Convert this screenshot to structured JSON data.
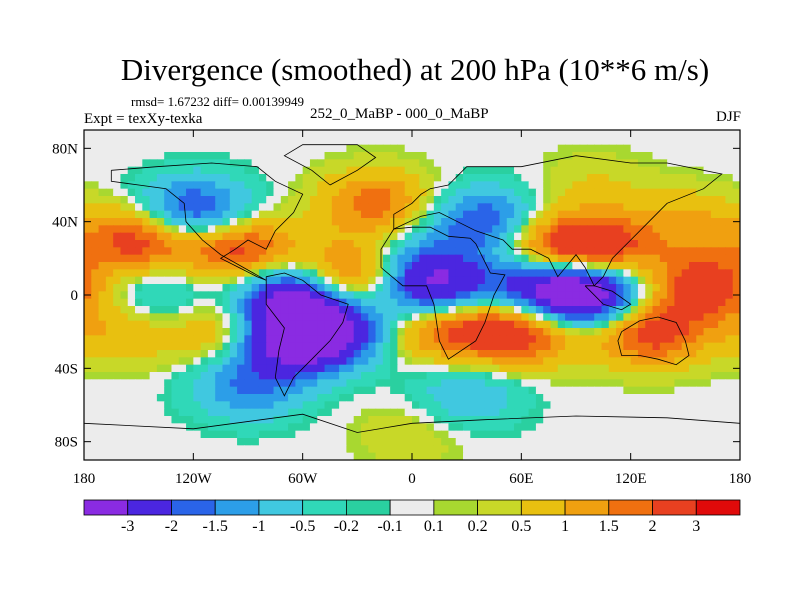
{
  "title": "Divergence (smoothed) at 200 hPa (10**6 m/s)",
  "stats_text": "rmsd= 1.67232 diff= 0.00139949",
  "expt_text": "Expt = texXy-texka",
  "difference_label": "252_0_MaBP - 000_0_MaBP",
  "season": "DJF",
  "chart_data": {
    "type": "heatmap",
    "title": "Divergence (smoothed) at 200 hPa (10**6 m/s)",
    "units": "10**6 m/s",
    "x_range": [
      -180,
      180
    ],
    "y_range": [
      -90,
      90
    ],
    "x_ticks": [
      {
        "value": -180,
        "label": "180"
      },
      {
        "value": -120,
        "label": "120W"
      },
      {
        "value": -60,
        "label": "60W"
      },
      {
        "value": 0,
        "label": "0"
      },
      {
        "value": 60,
        "label": "60E"
      },
      {
        "value": 120,
        "label": "120E"
      },
      {
        "value": 180,
        "label": "180"
      }
    ],
    "y_ticks": [
      {
        "value": 80,
        "label": "80N"
      },
      {
        "value": 40,
        "label": "40N"
      },
      {
        "value": 0,
        "label": "0"
      },
      {
        "value": -40,
        "label": "40S"
      },
      {
        "value": -80,
        "label": "80S"
      }
    ],
    "contour_levels": [
      "-3",
      "-2",
      "-1.5",
      "-1",
      "-0.5",
      "-0.2",
      "-0.1",
      "0.1",
      "0.2",
      "0.5",
      "1",
      "1.5",
      "2",
      "3"
    ],
    "colors": [
      "#8a2be2",
      "#4b26e0",
      "#2a64e8",
      "#2c9ee8",
      "#40c8e0",
      "#30d8b8",
      "#2ad0a0",
      "#ececec",
      "#a8d830",
      "#c8d828",
      "#e8c010",
      "#f0a010",
      "#f07010",
      "#e84020",
      "#e00a0a"
    ],
    "features": [
      {
        "lon": -120,
        "lat": 45,
        "value": -2.5
      },
      {
        "lon": -150,
        "lat": 30,
        "value": 2.5
      },
      {
        "lon": -95,
        "lat": 25,
        "value": 2.5
      },
      {
        "lon": -65,
        "lat": 0,
        "value": -3.2
      },
      {
        "lon": -50,
        "lat": -20,
        "value": -3.5
      },
      {
        "lon": -70,
        "lat": -25,
        "value": -2.5
      },
      {
        "lon": -35,
        "lat": 10,
        "value": 2.5
      },
      {
        "lon": 5,
        "lat": 15,
        "value": -1.5
      },
      {
        "lon": 15,
        "lat": 0,
        "value": -3.2
      },
      {
        "lon": 20,
        "lat": -15,
        "value": 2.8
      },
      {
        "lon": 60,
        "lat": -20,
        "value": 2.5
      },
      {
        "lon": 75,
        "lat": 5,
        "value": -3.2
      },
      {
        "lon": 100,
        "lat": 0,
        "value": -3.2
      },
      {
        "lon": 80,
        "lat": 25,
        "value": 2.5
      },
      {
        "lon": 105,
        "lat": 25,
        "value": 2.0
      },
      {
        "lon": 160,
        "lat": 5,
        "value": 2.5
      },
      {
        "lon": 130,
        "lat": -20,
        "value": 2.5
      },
      {
        "lon": -20,
        "lat": 50,
        "value": 1.8
      },
      {
        "lon": 40,
        "lat": 40,
        "value": -2.0
      },
      {
        "lon": -140,
        "lat": 0,
        "value": -1.0
      },
      {
        "lon": -160,
        "lat": -20,
        "value": 1.0
      },
      {
        "lon": -90,
        "lat": -50,
        "value": -1.5
      },
      {
        "lon": 30,
        "lat": -55,
        "value": -1.0
      },
      {
        "lon": 0,
        "lat": -75,
        "value": 0.5
      },
      {
        "lon": -30,
        "lat": 70,
        "value": 0.0
      },
      {
        "lon": 100,
        "lat": 60,
        "value": 0.5
      },
      {
        "lon": 150,
        "lat": 40,
        "value": 1.0
      },
      {
        "lon": -100,
        "lat": -20,
        "value": 1.5
      }
    ]
  }
}
